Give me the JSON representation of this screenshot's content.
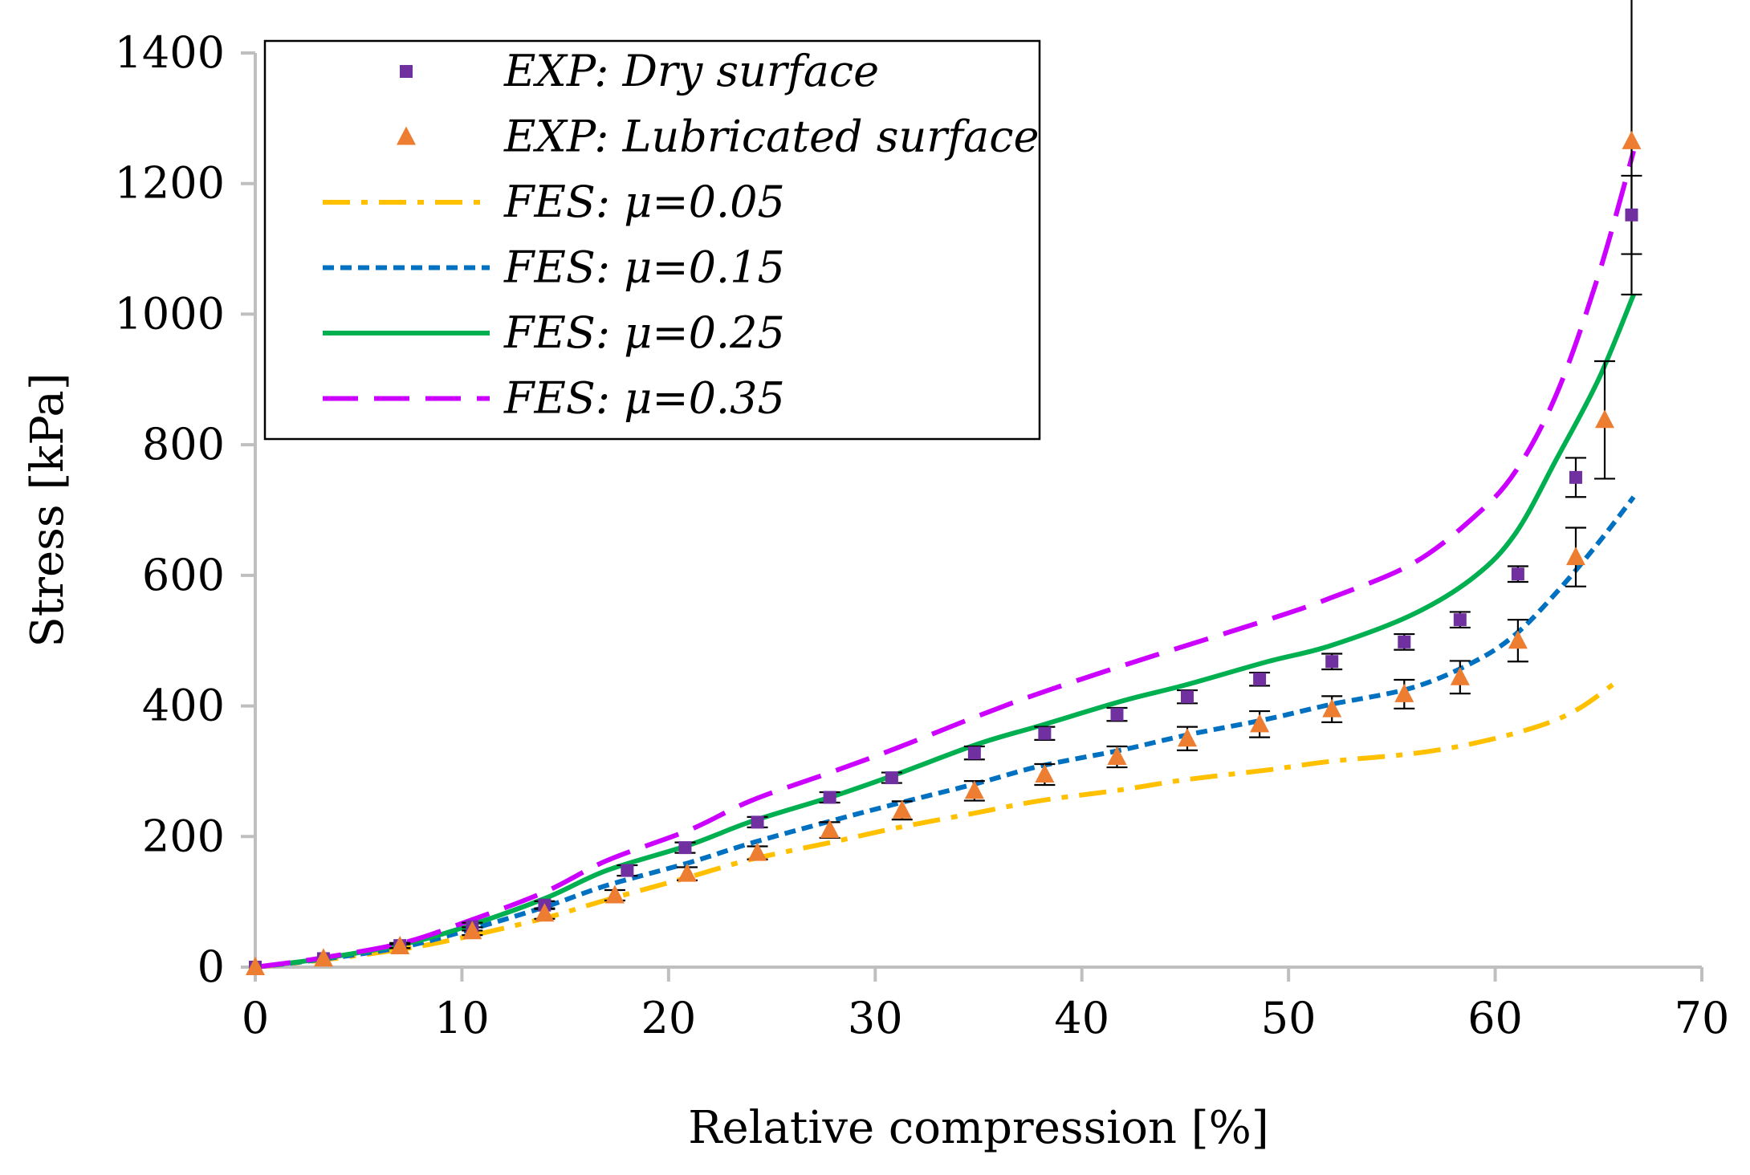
{
  "chart_data": {
    "type": "scatter",
    "title": "",
    "xlabel": "Relative compression [%]",
    "ylabel": "Stress [kPa]",
    "xlim": [
      0,
      70
    ],
    "ylim": [
      0,
      1400
    ],
    "x_ticks": [
      "0",
      "10",
      "20",
      "30",
      "40",
      "50",
      "60",
      "70"
    ],
    "y_ticks": [
      "0",
      "200",
      "400",
      "600",
      "800",
      "1000",
      "1200",
      "1400"
    ],
    "grid": false,
    "legend_position": "top-left",
    "series": [
      {
        "name": "EXP: Dry surface",
        "kind": "marker",
        "marker": "square",
        "color": "#7030A0",
        "points": [
          {
            "x": 0,
            "y": 0,
            "err": 0
          },
          {
            "x": 3.3,
            "y": 13,
            "err": 0
          },
          {
            "x": 7,
            "y": 33,
            "err": 4
          },
          {
            "x": 10.5,
            "y": 62,
            "err": 6
          },
          {
            "x": 14,
            "y": 95,
            "err": 6
          },
          {
            "x": 18,
            "y": 148,
            "err": 8
          },
          {
            "x": 20.8,
            "y": 183,
            "err": 8
          },
          {
            "x": 24.3,
            "y": 222,
            "err": 8
          },
          {
            "x": 27.8,
            "y": 260,
            "err": 8
          },
          {
            "x": 30.8,
            "y": 290,
            "err": 8
          },
          {
            "x": 34.8,
            "y": 328,
            "err": 10
          },
          {
            "x": 38.2,
            "y": 358,
            "err": 10
          },
          {
            "x": 41.7,
            "y": 387,
            "err": 10
          },
          {
            "x": 45.1,
            "y": 414,
            "err": 10
          },
          {
            "x": 48.6,
            "y": 441,
            "err": 10
          },
          {
            "x": 52.1,
            "y": 468,
            "err": 12
          },
          {
            "x": 55.6,
            "y": 498,
            "err": 12
          },
          {
            "x": 58.3,
            "y": 532,
            "err": 12
          },
          {
            "x": 61.1,
            "y": 602,
            "err": 12
          },
          {
            "x": 63.9,
            "y": 750,
            "err": 30
          },
          {
            "x": 66.6,
            "y": 1152,
            "err": 60
          }
        ]
      },
      {
        "name": "EXP: Lubricated surface",
        "kind": "marker",
        "marker": "triangle",
        "color": "#ED7D31",
        "points": [
          {
            "x": 0,
            "y": 0,
            "err": 0
          },
          {
            "x": 3.3,
            "y": 13,
            "err": 0
          },
          {
            "x": 7,
            "y": 32,
            "err": 3
          },
          {
            "x": 10.5,
            "y": 55,
            "err": 6
          },
          {
            "x": 14,
            "y": 82,
            "err": 8
          },
          {
            "x": 17.4,
            "y": 110,
            "err": 8
          },
          {
            "x": 20.9,
            "y": 143,
            "err": 10
          },
          {
            "x": 24.3,
            "y": 175,
            "err": 10
          },
          {
            "x": 27.8,
            "y": 210,
            "err": 12
          },
          {
            "x": 31.3,
            "y": 240,
            "err": 14
          },
          {
            "x": 34.8,
            "y": 270,
            "err": 15
          },
          {
            "x": 38.2,
            "y": 295,
            "err": 16
          },
          {
            "x": 41.7,
            "y": 322,
            "err": 16
          },
          {
            "x": 45.1,
            "y": 350,
            "err": 18
          },
          {
            "x": 48.6,
            "y": 372,
            "err": 20
          },
          {
            "x": 52.1,
            "y": 395,
            "err": 20
          },
          {
            "x": 55.6,
            "y": 418,
            "err": 22
          },
          {
            "x": 58.3,
            "y": 444,
            "err": 25
          },
          {
            "x": 61.1,
            "y": 500,
            "err": 32
          },
          {
            "x": 63.9,
            "y": 628,
            "err": 45
          },
          {
            "x": 65.3,
            "y": 838,
            "err": 90
          },
          {
            "x": 66.6,
            "y": 1265,
            "err": 235
          }
        ]
      },
      {
        "name": "FES: μ=0.05",
        "kind": "line",
        "dash": "dashdot",
        "color": "#FFC000",
        "x": [
          0,
          3,
          7,
          10,
          14,
          17,
          21,
          24,
          28,
          31,
          35,
          38,
          42,
          45,
          49,
          52,
          56,
          59,
          62,
          64,
          66
        ],
        "y": [
          0,
          10,
          27,
          45,
          75,
          103,
          138,
          165,
          192,
          213,
          237,
          255,
          272,
          287,
          302,
          315,
          327,
          343,
          368,
          395,
          440
        ]
      },
      {
        "name": "FES: μ=0.15",
        "kind": "line",
        "dash": "dotted",
        "color": "#0070C0",
        "x": [
          0,
          3,
          7,
          10,
          14,
          17,
          21,
          24,
          28,
          31,
          35,
          38,
          42,
          45,
          49,
          52,
          56,
          59,
          61,
          63,
          65,
          66.7
        ],
        "y": [
          0,
          11,
          30,
          54,
          92,
          125,
          160,
          190,
          225,
          250,
          282,
          308,
          333,
          355,
          380,
          402,
          428,
          468,
          510,
          575,
          650,
          720
        ]
      },
      {
        "name": "FES: μ=0.25",
        "kind": "line",
        "dash": "solid",
        "color": "#00B050",
        "x": [
          0,
          3,
          7,
          10,
          14,
          17,
          21,
          24,
          28,
          31,
          35,
          38,
          42,
          45,
          49,
          52,
          56,
          59,
          61,
          63,
          65,
          66.7
        ],
        "y": [
          0,
          12,
          34,
          60,
          105,
          148,
          187,
          223,
          262,
          295,
          342,
          370,
          408,
          432,
          468,
          492,
          540,
          598,
          665,
          780,
          900,
          1030
        ]
      },
      {
        "name": "FES: μ=0.35",
        "kind": "line",
        "dash": "dashed",
        "color": "#CC00FF",
        "x": [
          0,
          3,
          7,
          10,
          14,
          17,
          21,
          24,
          28,
          31,
          35,
          38,
          42,
          45,
          49,
          52,
          56,
          59,
          61,
          63,
          65,
          66.7
        ],
        "y": [
          0,
          13,
          36,
          67,
          115,
          163,
          210,
          255,
          300,
          335,
          385,
          420,
          462,
          492,
          532,
          565,
          618,
          690,
          760,
          880,
          1060,
          1250
        ]
      }
    ]
  }
}
